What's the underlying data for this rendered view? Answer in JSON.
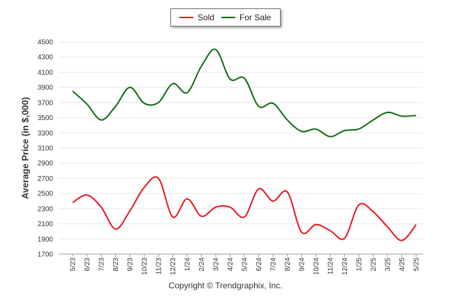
{
  "chart_data": {
    "type": "line",
    "ylabel": "Average Price (in $,000)",
    "xlabel": "",
    "ylim": [
      1700,
      4500
    ],
    "yticks": [
      1700,
      1900,
      2100,
      2300,
      2500,
      2700,
      2900,
      3100,
      3300,
      3500,
      3700,
      3900,
      4100,
      4300,
      4500
    ],
    "categories": [
      "5/23",
      "6/23",
      "7/23",
      "8/23",
      "9/23",
      "10/23",
      "11/23",
      "12/23",
      "1/24",
      "2/24",
      "3/24",
      "4/24",
      "5/24",
      "6/24",
      "7/24",
      "8/24",
      "9/24",
      "10/24",
      "11/24",
      "12/24",
      "1/25",
      "2/25",
      "3/25",
      "4/25",
      "5/25"
    ],
    "legend_position": "top-center",
    "grid": true,
    "series": [
      {
        "name": "Sold",
        "color": "#e8141b",
        "values": [
          2380,
          2480,
          2320,
          2030,
          2270,
          2580,
          2700,
          2190,
          2430,
          2200,
          2320,
          2320,
          2190,
          2560,
          2400,
          2520,
          1990,
          2090,
          2010,
          1910,
          2350,
          2260,
          2060,
          1880,
          2090
        ]
      },
      {
        "name": "For Sale",
        "color": "#0f6a0f",
        "values": [
          3850,
          3680,
          3470,
          3650,
          3900,
          3690,
          3700,
          3950,
          3830,
          4180,
          4400,
          4010,
          4020,
          3650,
          3690,
          3470,
          3320,
          3350,
          3250,
          3330,
          3350,
          3470,
          3570,
          3520,
          3530
        ]
      }
    ]
  },
  "legend": {
    "sold_label": "Sold",
    "for_sale_label": "For Sale"
  },
  "footer": {
    "copyright": "Copyright © Trendgraphix, Inc."
  }
}
